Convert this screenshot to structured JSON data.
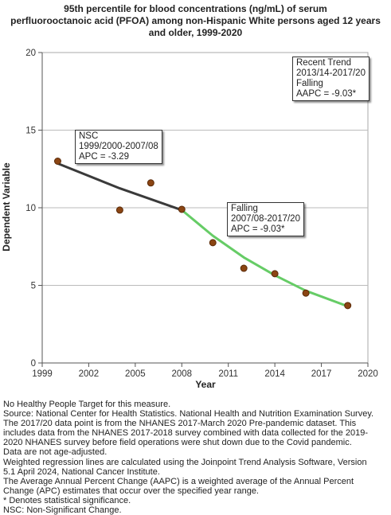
{
  "title_lines": [
    "95th percentile for blood concentrations (ng/mL) of serum",
    "perfluorooctanoic acid (PFOA) among non-Hispanic White persons aged 12 years",
    "and older, 1999-2020"
  ],
  "annotations": {
    "recent_trend": [
      "Recent Trend",
      "2013/14-2017/20",
      "Falling",
      "AAPC = -9.03*"
    ],
    "nsc_segment": [
      "NSC",
      "1999/2000-2007/08",
      "APC = -3.29"
    ],
    "falling_segment": [
      "Falling",
      "2007/08-2017/20",
      "APC = -9.03*"
    ]
  },
  "notes": [
    "No Healthy People Target for this measure.",
    "Source: National Center for Health Statistics. National Health and Nutrition Examination Survey.",
    "The 2017/20 data point is from the NHANES 2017-March 2020 Pre-pandemic dataset. This",
    "includes data from the NHANES 2017-2018 survey combined with data collected for the 2019-",
    "2020 NHANES survey before field operations were shut down due to the Covid pandemic.",
    "Data are not age-adjusted.",
    "Weighted regression lines are calculated using the Joinpoint Trend Analysis Software, Version",
    "5.1 April 2024, National Cancer Institute.",
    "The Average Annual Percent Change (AAPC) is a weighted average of the Annual Percent",
    "Change (APC) estimates that occur over the specified year range.",
    "* Denotes statistical significance.",
    "NSC: Non-Significant Change."
  ],
  "colors": {
    "point_fill": "#8b4513",
    "point_stroke": "#5a2a08",
    "segment_nsc": "#3a3a3a",
    "segment_falling": "#66cc66",
    "grid": "#bbbbbb",
    "plot_background": "#ffffff"
  },
  "chart_data": {
    "type": "scatter",
    "title": "95th percentile for blood concentrations (ng/mL) of serum perfluorooctanoic acid (PFOA) among non-Hispanic White persons aged 12 years and older, 1999-2020",
    "xlabel": "Year",
    "ylabel": "Dependent Variable",
    "xlim": [
      1999,
      2020
    ],
    "ylim": [
      0,
      20
    ],
    "x_ticks": [
      1999,
      2002,
      2005,
      2008,
      2011,
      2014,
      2017,
      2020
    ],
    "y_ticks": [
      0,
      5,
      10,
      15,
      20
    ],
    "grid": "horizontal",
    "points": {
      "x": [
        2000,
        2004,
        2006,
        2008,
        2010,
        2012,
        2014,
        2016,
        2018.7
      ],
      "y": [
        13.0,
        9.85,
        11.6,
        9.9,
        7.75,
        6.1,
        5.75,
        4.5,
        3.7
      ]
    },
    "segments": [
      {
        "name": "NSC",
        "x": [
          2000,
          2004,
          2008
        ],
        "y": [
          12.85,
          11.25,
          9.85
        ]
      },
      {
        "name": "Falling",
        "x": [
          2008,
          2010,
          2012,
          2014,
          2016,
          2018.7
        ],
        "y": [
          9.85,
          8.2,
          6.8,
          5.65,
          4.65,
          3.65
        ]
      }
    ]
  }
}
